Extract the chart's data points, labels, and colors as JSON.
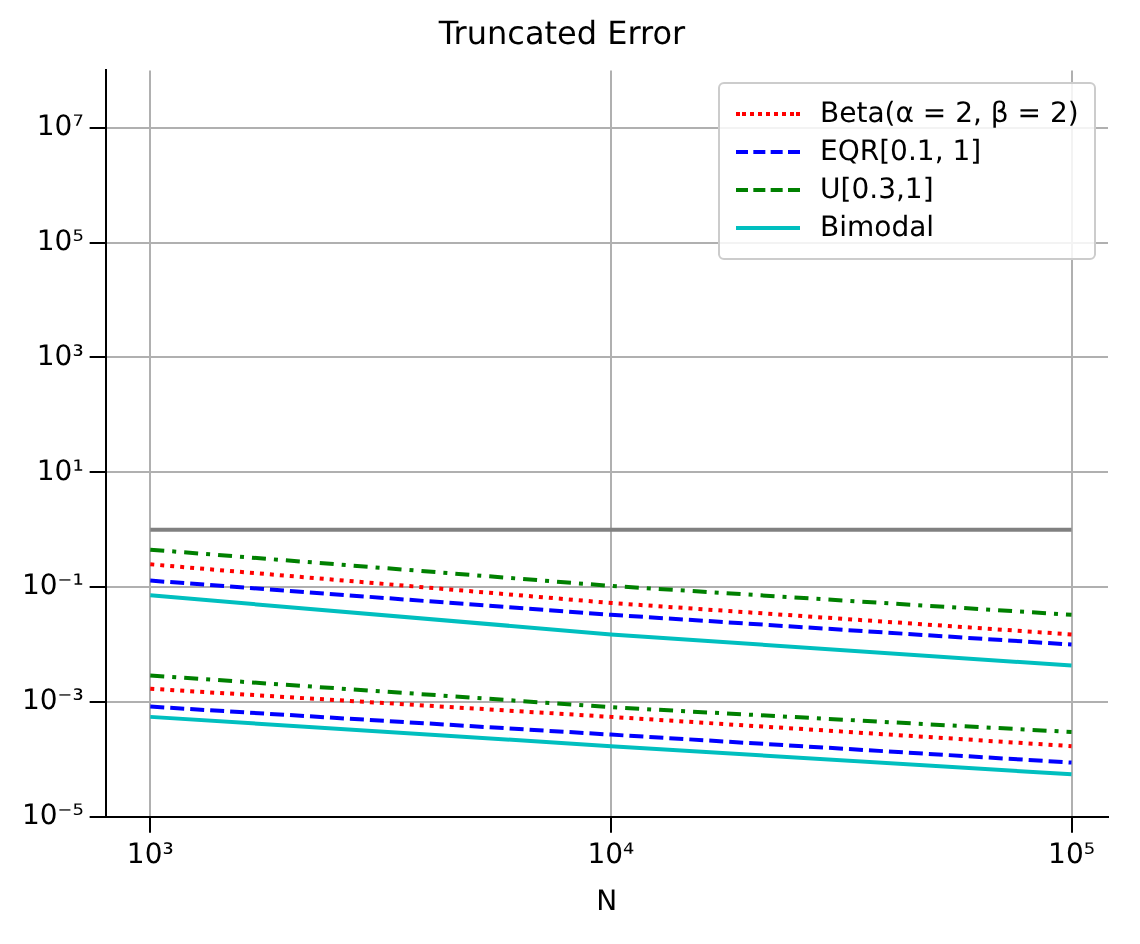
{
  "chart_data": {
    "type": "line",
    "title": "Truncated Error",
    "xlabel": "N",
    "log": "xy",
    "grid": true,
    "legend": "top right",
    "x": [
      1000,
      10000,
      100000
    ],
    "xlim": [
      800,
      120000
    ],
    "xticks": [
      {
        "value": 1000,
        "label": "10³"
      },
      {
        "value": 10000,
        "label": "10⁴"
      },
      {
        "value": 100000,
        "label": "10⁵"
      }
    ],
    "ylim": [
      1e-05,
      100000000
    ],
    "yticks": [
      {
        "value": 1e-05,
        "label": "10⁻⁵"
      },
      {
        "value": 0.001,
        "label": "10⁻³"
      },
      {
        "value": 0.1,
        "label": "10⁻¹"
      },
      {
        "value": 10,
        "label": "10¹"
      },
      {
        "value": 1000,
        "label": "10³"
      },
      {
        "value": 100000,
        "label": "10⁵"
      },
      {
        "value": 10000000,
        "label": "10⁷"
      }
    ],
    "series": [
      {
        "color": "#808080",
        "line_style": "solid",
        "values": [
          1.0,
          1.0,
          1.0
        ]
      },
      {
        "name": "Beta(α = 2, β = 2)",
        "color": "#ff0000",
        "line_style": "dotted",
        "values": [
          0.25,
          0.053,
          0.015
        ]
      },
      {
        "name": "EQR[0.1, 1]",
        "color": "#0000ff",
        "line_style": "dashed",
        "values": [
          0.13,
          0.033,
          0.01
        ]
      },
      {
        "name": "U[0.3,1]",
        "color": "#008000",
        "line_style": "dashdot",
        "values": [
          0.45,
          0.105,
          0.033
        ]
      },
      {
        "name": "Bimodal",
        "color": "#00bfbf",
        "line_style": "solid",
        "values": [
          0.072,
          0.015,
          0.0043
        ]
      },
      {
        "color": "#ff0000",
        "line_style": "dotted",
        "values": [
          0.0017,
          0.00055,
          0.00017
        ]
      },
      {
        "color": "#0000ff",
        "line_style": "dashed",
        "values": [
          0.00083,
          0.00027,
          8.8e-05
        ]
      },
      {
        "color": "#008000",
        "line_style": "dashdot",
        "values": [
          0.0029,
          0.00081,
          0.0003
        ]
      },
      {
        "color": "#00bfbf",
        "line_style": "solid",
        "values": [
          0.00055,
          0.00017,
          5.5e-05
        ]
      }
    ]
  }
}
